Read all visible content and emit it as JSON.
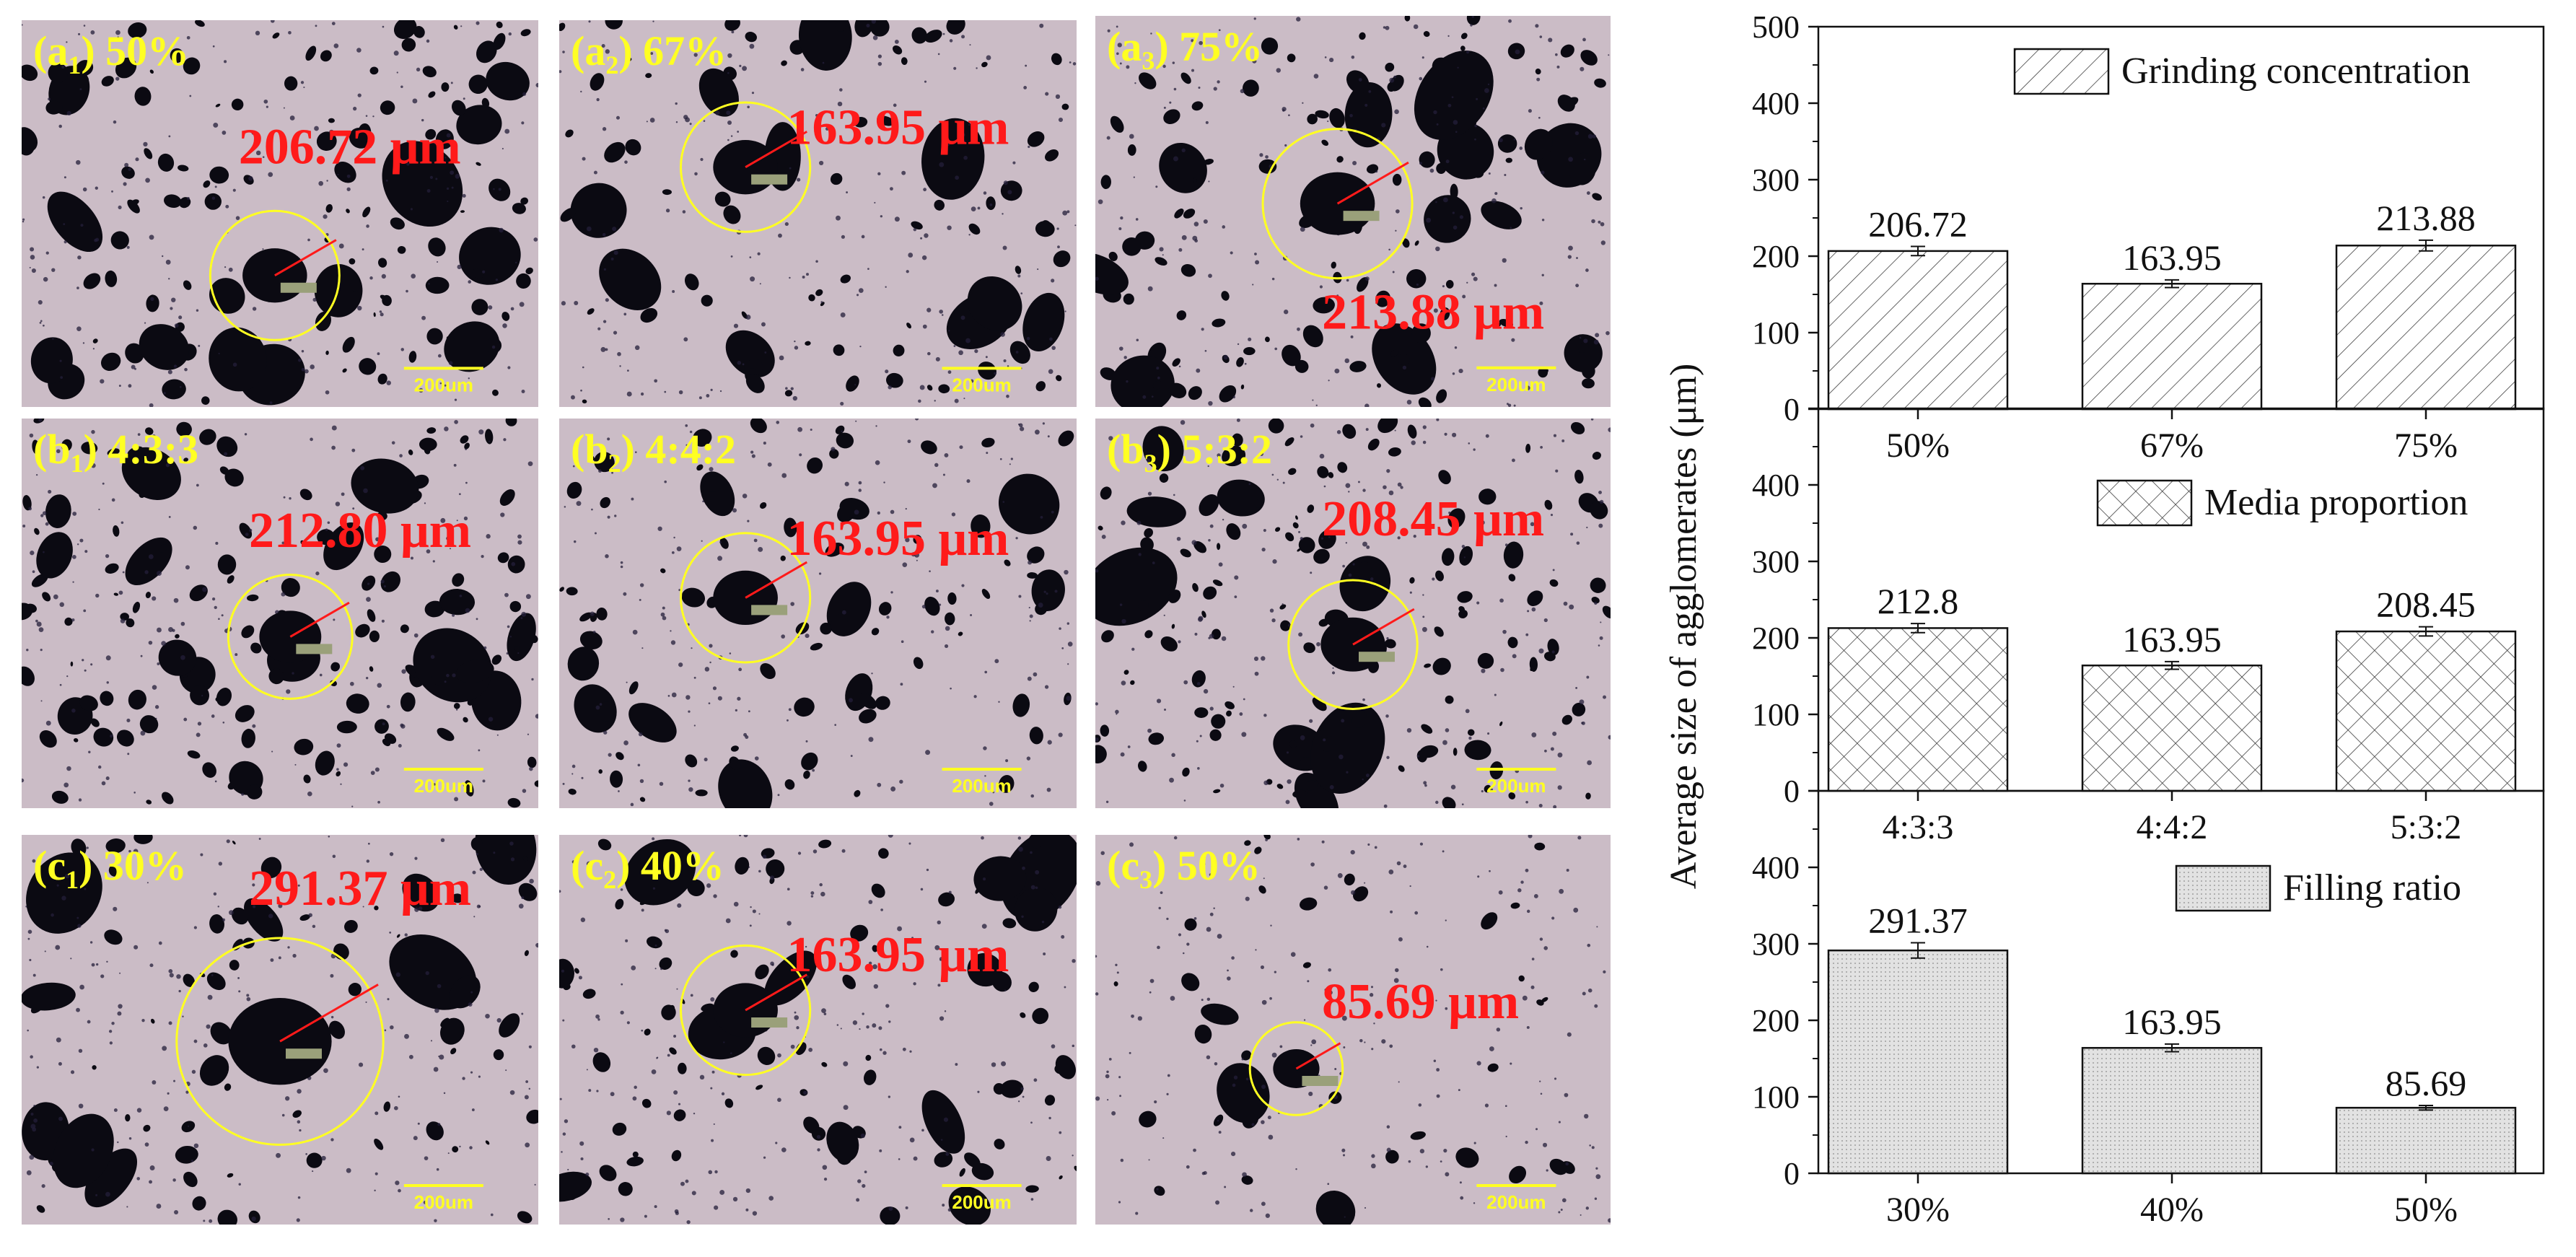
{
  "figure": {
    "panels": [
      {
        "id": "a1",
        "letter": "a",
        "sub": "1",
        "setting": " 50%",
        "size_label": "206.72 μm",
        "scale_bar": "200um"
      },
      {
        "id": "a2",
        "letter": "a",
        "sub": "2",
        "setting": " 67%",
        "size_label": "163.95 μm",
        "scale_bar": "200um"
      },
      {
        "id": "a3",
        "letter": "a",
        "sub": "3",
        "setting": " 75%",
        "size_label": "213.88 μm",
        "scale_bar": "200um"
      },
      {
        "id": "b1",
        "letter": "b",
        "sub": "1",
        "setting": " 4:3:3",
        "size_label": "212.80 μm",
        "scale_bar": "200um"
      },
      {
        "id": "b2",
        "letter": "b",
        "sub": "2",
        "setting": " 4:4:2",
        "size_label": "163.95 μm",
        "scale_bar": "200um"
      },
      {
        "id": "b3",
        "letter": "b",
        "sub": "3",
        "setting": " 5:3:2",
        "size_label": "208.45 μm",
        "scale_bar": "200um"
      },
      {
        "id": "c1",
        "letter": "c",
        "sub": "1",
        "setting": " 30%",
        "size_label": "291.37 μm",
        "scale_bar": "200um"
      },
      {
        "id": "c2",
        "letter": "c",
        "sub": "2",
        "setting": " 40%",
        "size_label": "163.95 μm",
        "scale_bar": "200um"
      },
      {
        "id": "c3",
        "letter": "c",
        "sub": "3",
        "setting": " 50%",
        "size_label": "85.69 μm",
        "scale_bar": "200um"
      }
    ],
    "colors": {
      "micrograph_bg": "#cbbcc6",
      "particles": "#0b0a12",
      "label_yellow": "#ffff22",
      "size_red": "#ff1a1a",
      "bar_fill": "#ffffff",
      "filling_fill": "#e2e2e2"
    }
  },
  "chart_data": {
    "type": "bar",
    "ylabel": "Average size of agglomerates (μm)",
    "ylim": [
      0,
      500
    ],
    "yticks": [
      0,
      100,
      200,
      300,
      400,
      500
    ],
    "subplots": [
      {
        "legend": "Grinding concentration",
        "pattern": "diagonal-hatch",
        "categories": [
          "50%",
          "67%",
          "75%"
        ],
        "values": [
          206.72,
          163.95,
          213.88
        ],
        "value_labels": [
          "206.72",
          "163.95",
          "213.88"
        ],
        "errors": [
          6,
          5,
          7
        ]
      },
      {
        "legend": "Media proportion",
        "pattern": "cross-hatch",
        "categories": [
          "4:3:3",
          "4:4:2",
          "5:3:2"
        ],
        "values": [
          212.8,
          163.95,
          208.45
        ],
        "value_labels": [
          "212.8",
          "163.95",
          "208.45"
        ],
        "errors": [
          6,
          5,
          6
        ]
      },
      {
        "legend": "Filling ratio",
        "pattern": "dotted",
        "categories": [
          "30%",
          "40%",
          "50%"
        ],
        "values": [
          291.37,
          163.95,
          85.69
        ],
        "value_labels": [
          "291.37",
          "163.95",
          "85.69"
        ],
        "errors": [
          10,
          5,
          3
        ]
      }
    ]
  }
}
